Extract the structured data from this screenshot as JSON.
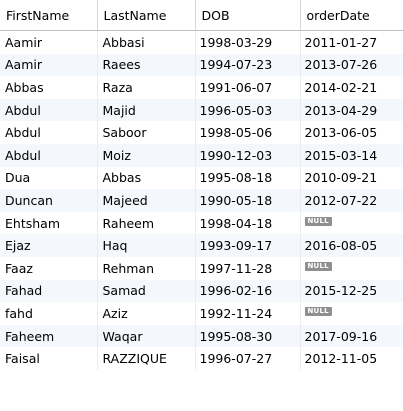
{
  "columns": [
    "FirstName",
    "LastName",
    "DOB",
    "orderDate"
  ],
  "null_label": "NULL",
  "rows": [
    {
      "first": "Aamir",
      "last": "Abbasi",
      "dob": "1998-03-29",
      "order": "2011-01-27"
    },
    {
      "first": "Aamir",
      "last": "Raees",
      "dob": "1994-07-23",
      "order": "2013-07-26"
    },
    {
      "first": "Abbas",
      "last": "Raza",
      "dob": "1991-06-07",
      "order": "2014-02-21"
    },
    {
      "first": "Abdul",
      "last": "Majid",
      "dob": "1996-05-03",
      "order": "2013-04-29"
    },
    {
      "first": "Abdul",
      "last": "Saboor",
      "dob": "1998-05-06",
      "order": "2013-06-05"
    },
    {
      "first": "Abdul",
      "last": "Moiz",
      "dob": "1990-12-03",
      "order": "2015-03-14"
    },
    {
      "first": "Dua",
      "last": "Abbas",
      "dob": "1995-08-18",
      "order": "2010-09-21"
    },
    {
      "first": "Duncan",
      "last": "Majeed",
      "dob": "1990-05-18",
      "order": "2012-07-22"
    },
    {
      "first": "Ehtsham",
      "last": "Raheem",
      "dob": "1998-04-18",
      "order": null
    },
    {
      "first": "Ejaz",
      "last": "Haq",
      "dob": "1993-09-17",
      "order": "2016-08-05"
    },
    {
      "first": "Faaz",
      "last": "Rehman",
      "dob": "1997-11-28",
      "order": null
    },
    {
      "first": "Fahad",
      "last": "Samad",
      "dob": "1996-02-16",
      "order": "2015-12-25"
    },
    {
      "first": "fahd",
      "last": "Aziz",
      "dob": "1992-11-24",
      "order": null
    },
    {
      "first": "Faheem",
      "last": "Waqar",
      "dob": "1995-08-30",
      "order": "2017-09-16"
    },
    {
      "first": "Faisal",
      "last": "RAZZIQUE",
      "dob": "1996-07-27",
      "order": "2012-11-05"
    }
  ]
}
